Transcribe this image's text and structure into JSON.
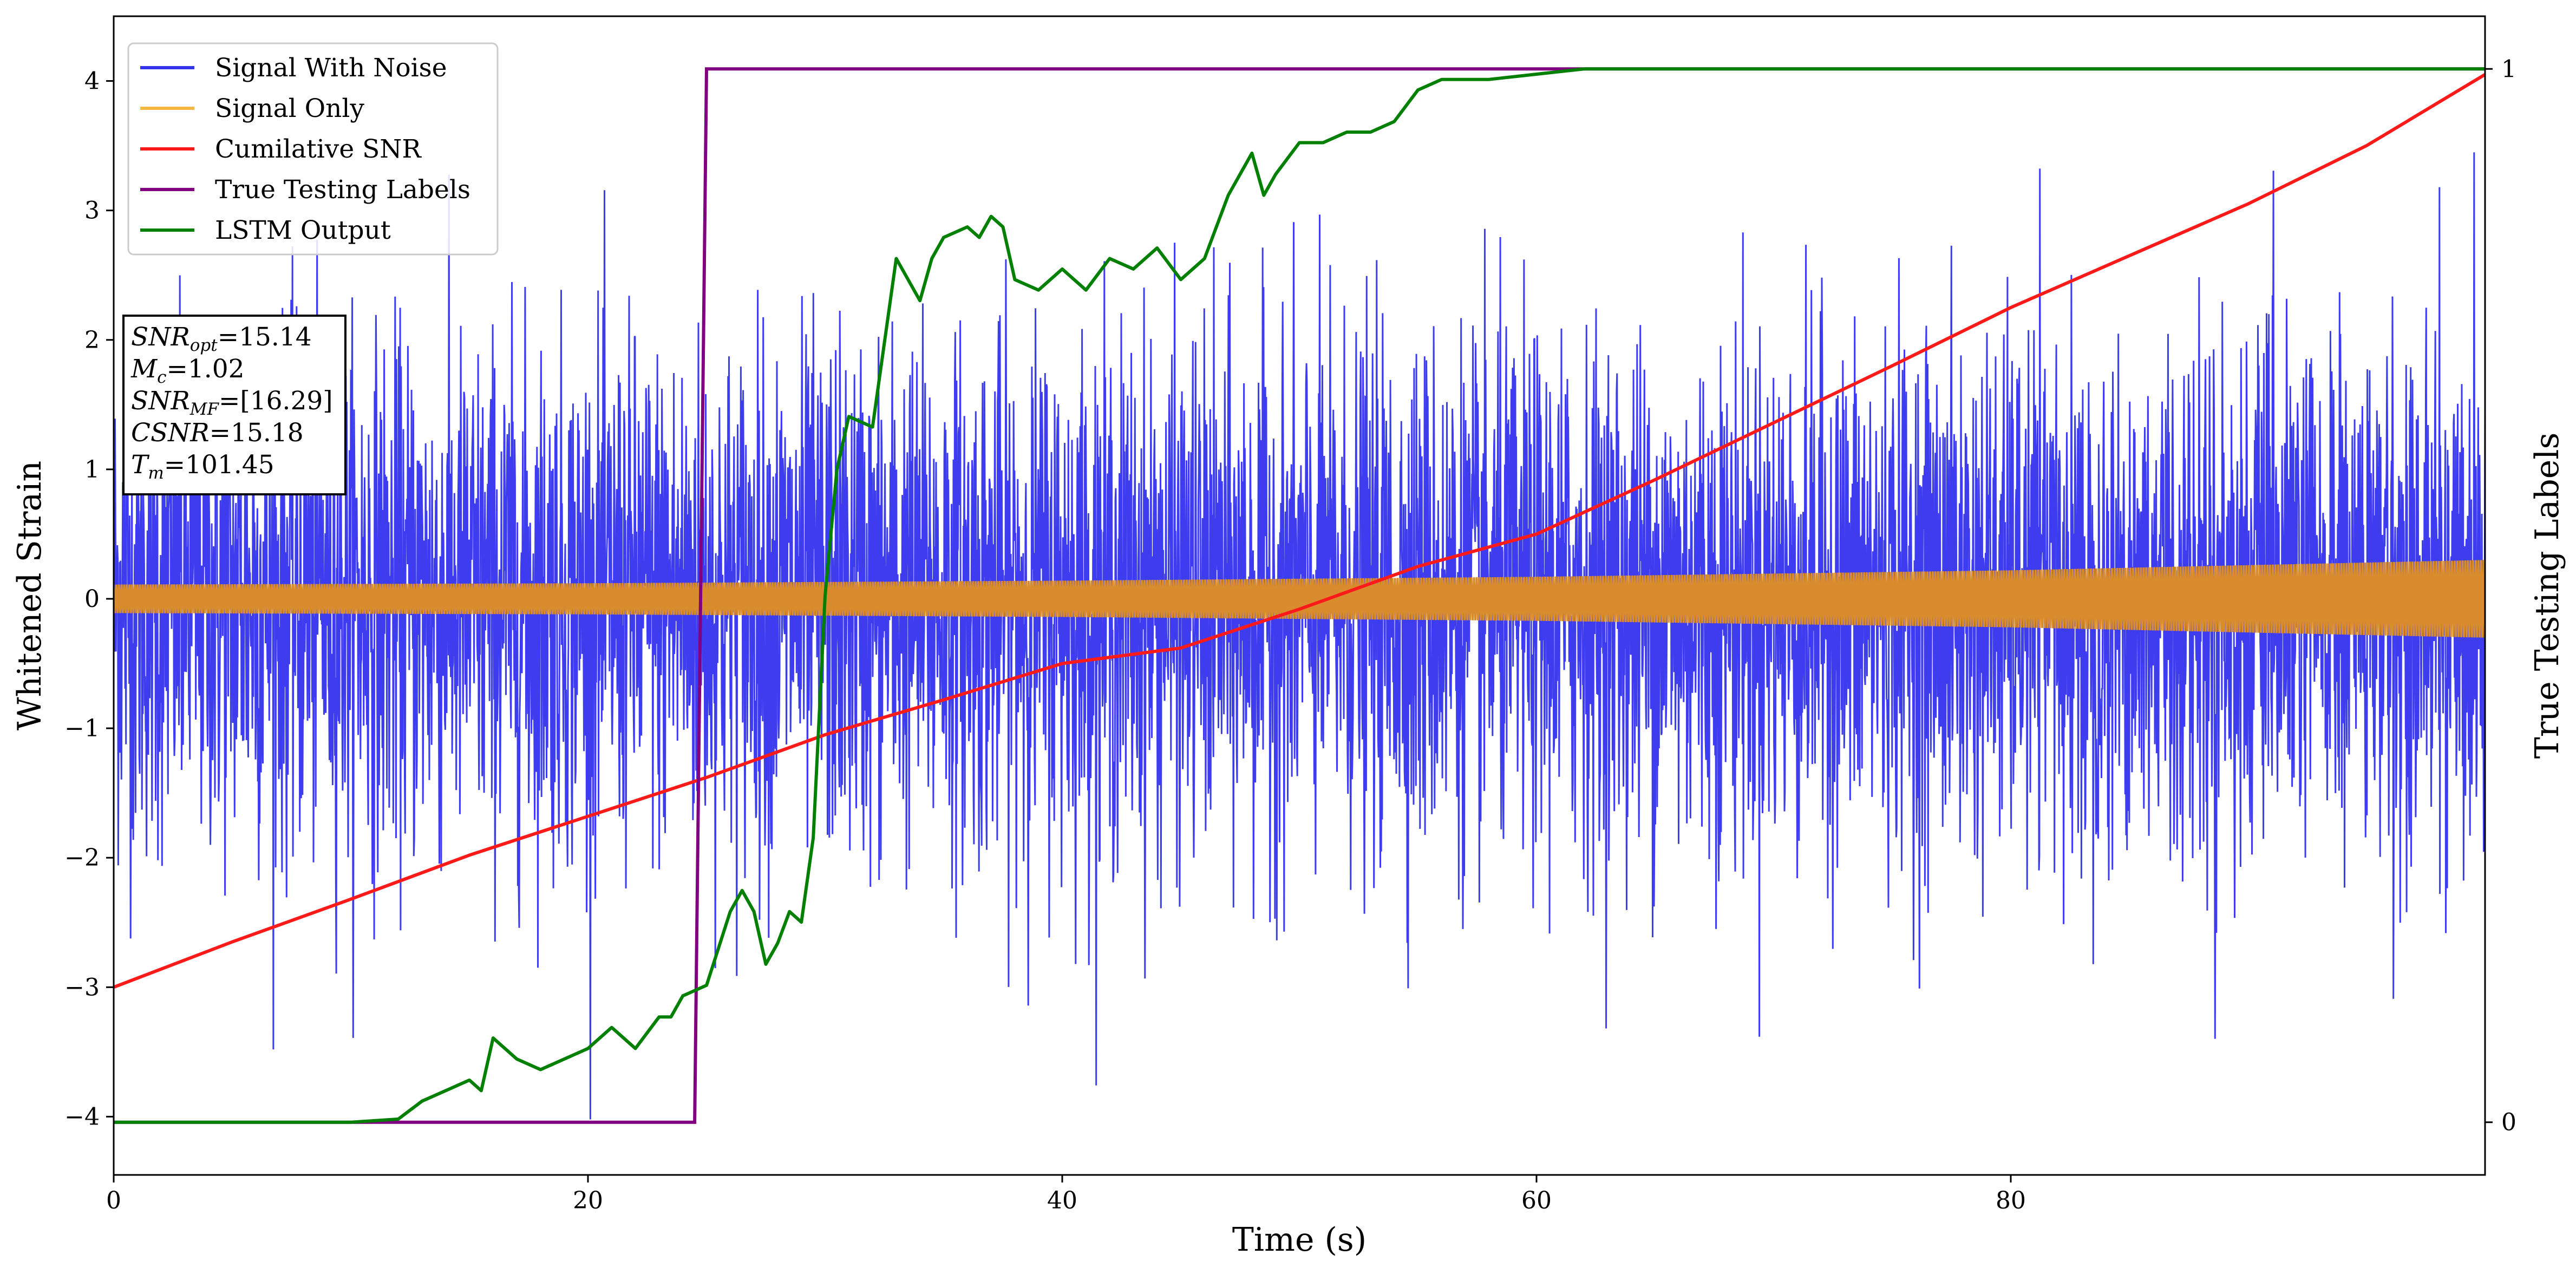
{
  "chart_data": {
    "type": "line",
    "xlabel": "Time (s)",
    "ylabel": "Whitened Strain",
    "y2label": "True Testing Labels",
    "xlim": [
      0,
      100
    ],
    "ylim": [
      -4.45,
      4.5
    ],
    "y2lim": [
      -0.05,
      1.05
    ],
    "xticks": [
      0,
      20,
      40,
      60,
      80
    ],
    "yticks": [
      -4,
      -3,
      -2,
      -1,
      0,
      1,
      2,
      3,
      4
    ],
    "y2ticks": [
      0,
      1
    ],
    "xtick_labels": [
      "0",
      "20",
      "40",
      "60",
      "80"
    ],
    "ytick_labels": [
      "−4",
      "−3",
      "−2",
      "−1",
      "0",
      "1",
      "2",
      "3",
      "4"
    ],
    "y2tick_labels": [
      "0",
      "1"
    ],
    "grid": false,
    "legend": {
      "position": "top-left",
      "entries": [
        {
          "label": "Signal With Noise",
          "color": "#3333ee"
        },
        {
          "label": "Signal Only",
          "color": "#f5b942"
        },
        {
          "label": "Cumilative SNR",
          "color": "#ff1a1a"
        },
        {
          "label": "True Testing Labels",
          "color": "#800080"
        },
        {
          "label": "LSTM Output",
          "color": "#008000"
        }
      ]
    },
    "annotation": {
      "lines": [
        {
          "base": "SNR",
          "sub": "opt",
          "value": "=15.14"
        },
        {
          "base": "M",
          "sub": "c",
          "value": "=1.02"
        },
        {
          "base": "SNR",
          "sub": "MF",
          "value": "=[16.29]"
        },
        {
          "base": "CSNR",
          "sub": "",
          "value": "=15.18"
        },
        {
          "base": "T",
          "sub": "m",
          "value": "=101.45"
        }
      ]
    },
    "series": [
      {
        "name": "Signal With Noise",
        "axis": "left",
        "color": "#3333ee",
        "style": "dense noise band",
        "approx_range": [
          -4.1,
          3.5
        ]
      },
      {
        "name": "Signal Only",
        "axis": "left",
        "color": "#d98c2e",
        "style": "oscillating envelope",
        "envelope": {
          "x": [
            0,
            20,
            40,
            60,
            80,
            100
          ],
          "amp": [
            0.11,
            0.12,
            0.14,
            0.17,
            0.22,
            0.3
          ]
        }
      },
      {
        "name": "Cumilative SNR",
        "axis": "left",
        "color": "#ff1a1a",
        "x": [
          0,
          5,
          10,
          15,
          20,
          25,
          30,
          35,
          40,
          45,
          50,
          55,
          60,
          65,
          70,
          75,
          80,
          85,
          90,
          95,
          100
        ],
        "y": [
          -3.0,
          -2.65,
          -2.32,
          -1.98,
          -1.68,
          -1.38,
          -1.05,
          -0.78,
          -0.5,
          -0.38,
          -0.08,
          0.25,
          0.5,
          0.92,
          1.36,
          1.8,
          2.25,
          2.65,
          3.05,
          3.5,
          4.05
        ]
      },
      {
        "name": "True Testing Labels",
        "axis": "right",
        "color": "#800080",
        "x": [
          0,
          24.5,
          25.0,
          100
        ],
        "y": [
          0,
          0,
          1,
          1
        ]
      },
      {
        "name": "LSTM Output",
        "axis": "right",
        "color": "#008000",
        "x": [
          0,
          10,
          12,
          13,
          14,
          15,
          15.5,
          16,
          17,
          18,
          19,
          20,
          21,
          22,
          23,
          23.5,
          24,
          25,
          26,
          26.5,
          27,
          27.5,
          28,
          28.5,
          29,
          29.5,
          30,
          30.5,
          31,
          32,
          33,
          34,
          34.5,
          35,
          36,
          36.5,
          37,
          37.5,
          38,
          39,
          40,
          41,
          42,
          43,
          44,
          45,
          46,
          47,
          48,
          48.5,
          49,
          50,
          51,
          52,
          53,
          54,
          55,
          56,
          58,
          60,
          62,
          65,
          70,
          100
        ],
        "y": [
          0,
          0,
          0.003,
          0.02,
          0.03,
          0.04,
          0.03,
          0.08,
          0.06,
          0.05,
          0.06,
          0.07,
          0.09,
          0.07,
          0.1,
          0.1,
          0.12,
          0.13,
          0.2,
          0.22,
          0.2,
          0.15,
          0.17,
          0.2,
          0.19,
          0.27,
          0.5,
          0.62,
          0.67,
          0.66,
          0.82,
          0.78,
          0.82,
          0.84,
          0.85,
          0.84,
          0.86,
          0.85,
          0.8,
          0.79,
          0.81,
          0.79,
          0.82,
          0.81,
          0.83,
          0.8,
          0.82,
          0.88,
          0.92,
          0.88,
          0.9,
          0.93,
          0.93,
          0.94,
          0.94,
          0.95,
          0.98,
          0.99,
          0.99,
          0.995,
          1.0,
          1.0,
          1.0,
          1.0
        ]
      }
    ]
  }
}
